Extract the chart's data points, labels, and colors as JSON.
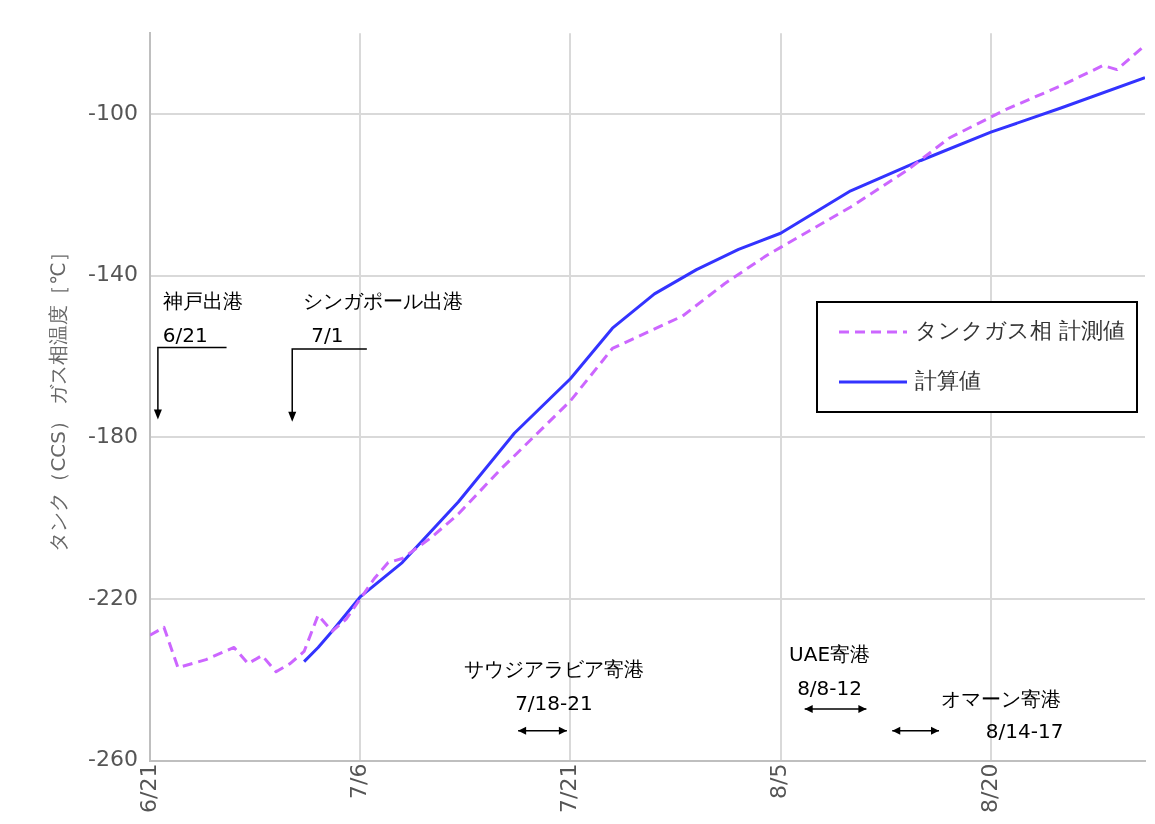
{
  "chart_data": {
    "type": "line",
    "ylabel": "タンク（CCS） ガス相温度［℃］",
    "xlim": [
      "--06-21",
      "--08-31"
    ],
    "xticks": [
      {
        "value": "--06-21",
        "label": "6/21"
      },
      {
        "value": "--07-06",
        "label": "7/6"
      },
      {
        "value": "--07-21",
        "label": "7/21"
      },
      {
        "value": "--08-05",
        "label": "8/5"
      },
      {
        "value": "--08-20",
        "label": "8/20"
      }
    ],
    "ylim": [
      -260,
      -80
    ],
    "yticks": [
      -260,
      -220,
      -180,
      -140,
      -100
    ],
    "grid": true,
    "legend": "right",
    "marker": "none",
    "series": [
      {
        "name": "タンクガス相 計測値",
        "color": "#cc66ff",
        "line_style": "dashed",
        "x": [
          "--06-21",
          "--06-22",
          "--06-23",
          "--06-25",
          "--06-27",
          "--06-28",
          "--06-29",
          "--06-30",
          "--07-01",
          "--07-02",
          "--07-03",
          "--07-04",
          "--07-05",
          "--07-06",
          "--07-07",
          "--07-08",
          "--07-09",
          "--07-11",
          "--07-13",
          "--07-16",
          "--07-21",
          "--07-24",
          "--07-29",
          "--08-01",
          "--08-04",
          "--08-05",
          "--08-10",
          "--08-14",
          "--08-17",
          "--08-21",
          "--08-25",
          "--08-28",
          "--08-29",
          "--08-31"
        ],
        "values": [
          -229,
          -227,
          -237,
          -235,
          -232,
          -236,
          -234,
          -238,
          -236,
          -233,
          -224,
          -228,
          -225,
          -220,
          -215,
          -211,
          -210,
          -205,
          -199,
          -188,
          -171,
          -158,
          -150,
          -142,
          -135,
          -133,
          -123,
          -114,
          -106,
          -99,
          -93,
          -88,
          -89,
          -83
        ]
      },
      {
        "name": "計算値",
        "color": "#3333ff",
        "line_style": "solid",
        "x": [
          "--07-02",
          "--07-03",
          "--07-04",
          "--07-06",
          "--07-09",
          "--07-13",
          "--07-17",
          "--07-21",
          "--07-24",
          "--07-27",
          "--07-30",
          "--08-02",
          "--08-05",
          "--08-10",
          "--08-15",
          "--08-20",
          "--08-25",
          "--08-31"
        ],
        "values": [
          -235.5,
          -232,
          -228,
          -219.5,
          -211,
          -196,
          -179,
          -165.5,
          -153,
          -144.5,
          -138.5,
          -133.5,
          -129.5,
          -119,
          -111.5,
          -104.5,
          -98.5,
          -91
        ]
      }
    ],
    "annotations": [
      "神戸出港\n6/21",
      "シンガポール出港\n7/1",
      "サウジアラビア寄港\n7/18-21",
      "UAE寄港\n8/8-12",
      "オマーン寄港\n8/14-17"
    ]
  }
}
